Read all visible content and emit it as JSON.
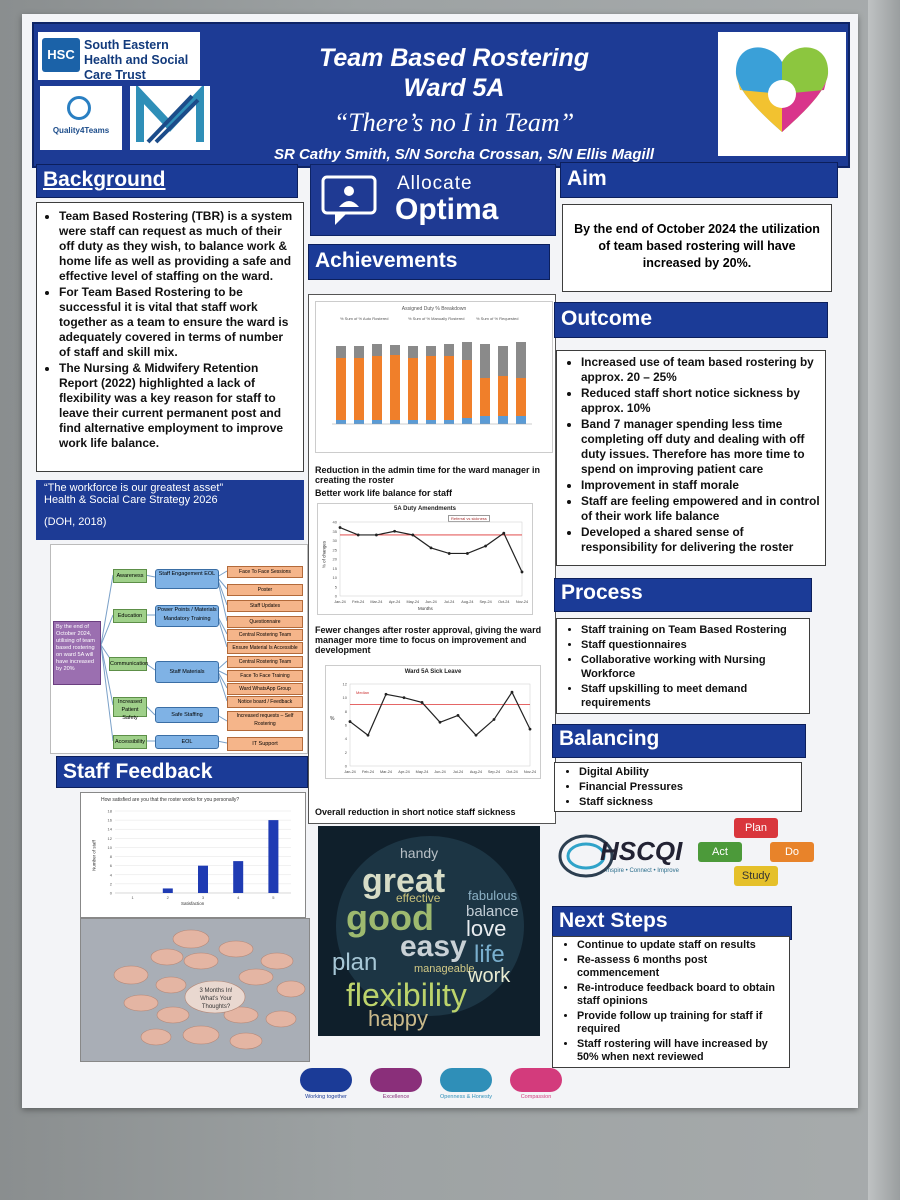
{
  "header": {
    "trust_name": "South Eastern Health and Social Care Trust",
    "hsc_logo": "HSC",
    "q4t_label": "Quality4Teams",
    "title_line1": "Team Based Rostering",
    "title_line2": "Ward 5A",
    "subtitle": "“There’s no I in Team”",
    "authors": "SR Cathy Smith, S/N Sorcha Crossan, S/N Ellis Magill"
  },
  "background": {
    "heading": "Background",
    "bullets": [
      "Team Based Rostering (TBR) is a system were staff can request as much of their off duty as they wish, to balance work & home life as well as providing a safe and effective level of staffing on the ward.",
      "For Team Based Rostering to be successful it is vital that staff work together as a team to ensure the ward is adequately covered in terms of number of staff and skill mix.",
      "The Nursing & Midwifery Retention Report (2022) highlighted a lack of flexibility was a key reason for staff to leave their current permanent post and find alternative employment to improve work life balance."
    ]
  },
  "quote": {
    "line1": "“The workforce is our greatest asset”",
    "line2": "Health & Social Care Strategy 2026",
    "line3": "(DOH, 2018)"
  },
  "driver": {
    "aim": "By the end of October 2024, utilising of team based rostering on ward 5A will have increased by 20%",
    "primary": [
      "Awareness",
      "Education",
      "Communication",
      "Increased Patient Safety",
      "Accessibility"
    ],
    "secondary": [
      "Staff Engagement EOL",
      "Power Points / Materials Mandatory Training",
      "Staff Materials",
      "Safe Staffing",
      "EOL"
    ],
    "change": [
      "Face To Face Sessions",
      "Poster",
      "Staff Updates",
      "Questionnaire",
      "Central Rostering Team",
      "Ensure Material Is Accessible",
      "Central Rostering Team",
      "Face To Face Training",
      "Ward WhatsApp Group",
      "Notice board / Feedback",
      "Increased requests – Self Rostering",
      "IT Support"
    ]
  },
  "staff_feedback": {
    "heading": "Staff Feedback",
    "chart_title": "How satisfied are you that the roster works for you personally?",
    "note_center": "3 Months In! What's Your Thoughts?"
  },
  "allocate": {
    "line1": "Allocate",
    "line2": "Optima"
  },
  "achievements": {
    "heading": "Achievements",
    "chart1_title": "Assigned Duty % Breakdown",
    "chart1_legend": [
      "% Sum of % Auto Rostered",
      "% Sum of % Manually Rostered",
      "% Sum of % Requested"
    ],
    "caption1": "Reduction in the admin time for the ward manager in creating the roster",
    "caption2": "Better work life balance for staff",
    "chart2_title": "5A Duty Amendments",
    "chart2_legend": "Referral vs sickness",
    "caption3": "Fewer changes after roster approval, giving the ward manager more time to focus on improvement and development",
    "chart3_title": "Ward 5A Sick Leave",
    "chart3_median": "Median",
    "caption4": "Overall reduction in short notice staff sickness"
  },
  "aim": {
    "heading": "Aim",
    "text": "By the end of October 2024 the utilization of team based rostering will have increased by 20%."
  },
  "outcome": {
    "heading": "Outcome",
    "bullets": [
      "Increased use of team based rostering by approx. 20 – 25%",
      "Reduced staff short notice sickness by approx. 10%",
      "Band 7 manager spending less time completing off duty and dealing with off duty issues. Therefore has more time to spend on improving patient care",
      "Improvement in staff morale",
      "Staff are feeling empowered and in control of their work life balance",
      "Developed a shared sense of responsibility for delivering the roster"
    ]
  },
  "process": {
    "heading": "Process",
    "bullets": [
      "Staff training on Team Based Rostering",
      "Staff questionnaires",
      "Collaborative working with Nursing Workforce",
      "Staff upskilling to meet demand requirements"
    ]
  },
  "balancing": {
    "heading": "Balancing",
    "bullets": [
      "Digital Ability",
      "Financial Pressures",
      "Staff sickness"
    ]
  },
  "hscqi": {
    "logo": "HSCQI",
    "tagline": "Inspire • Connect • Improve",
    "pdsa": [
      "Plan",
      "Do",
      "Study",
      "Act"
    ]
  },
  "next_steps": {
    "heading": "Next Steps",
    "bullets": [
      "Continue to update staff on results",
      "Re-assess 6 months post commencement",
      "Re-introduce feedback board to obtain staff opinions",
      "Provide follow up training for staff if required",
      "Staff rostering will have increased by 50% when next reviewed"
    ]
  },
  "word_cloud": [
    "handy",
    "great",
    "effective",
    "fabulous",
    "balance",
    "good",
    "love",
    "easy",
    "plan",
    "life",
    "manageable",
    "work",
    "flexibility",
    "happy"
  ],
  "values": [
    "Working together",
    "Excellence",
    "Openness & Honesty",
    "Compassion"
  ],
  "chart_data": [
    {
      "type": "bar",
      "title": "How satisfied are you that the roster works for you personally?",
      "xlabel": "Satisfaction",
      "ylabel": "Number of staff",
      "categories": [
        "1",
        "2",
        "3",
        "4",
        "5"
      ],
      "values": [
        0,
        1,
        6,
        7,
        16
      ],
      "ylim": [
        0,
        18
      ]
    },
    {
      "type": "line",
      "title": "5A Duty Amendments",
      "xlabel": "Months",
      "ylabel": "% of changes",
      "x": [
        "Jan-24",
        "Feb-24",
        "Mar-24",
        "Apr-24",
        "May-24",
        "Jun-24",
        "Jul-24",
        "Aug-24",
        "Sep-24",
        "Oct-24",
        "Nov-24"
      ],
      "series": [
        {
          "name": "",
          "values": [
            37,
            33,
            33,
            35,
            33,
            26,
            23,
            23,
            27,
            34,
            13
          ]
        }
      ],
      "median": 33,
      "ylim": [
        0,
        40
      ]
    },
    {
      "type": "line",
      "title": "Ward 5A Sick Leave",
      "ylabel": "%",
      "x": [
        "Jan-24",
        "Feb-24",
        "Mar-24",
        "Apr-24",
        "May-24",
        "Jun-24",
        "Jul-24",
        "Aug-24",
        "Sep-24",
        "Oct-24",
        "Nov-24"
      ],
      "series": [
        {
          "name": "",
          "values": [
            6.5,
            4.5,
            10.5,
            10,
            9.3,
            6.4,
            7.4,
            4.5,
            6.8,
            10.8,
            5.4
          ]
        }
      ],
      "median": 9,
      "ylim": [
        0,
        12
      ]
    }
  ]
}
